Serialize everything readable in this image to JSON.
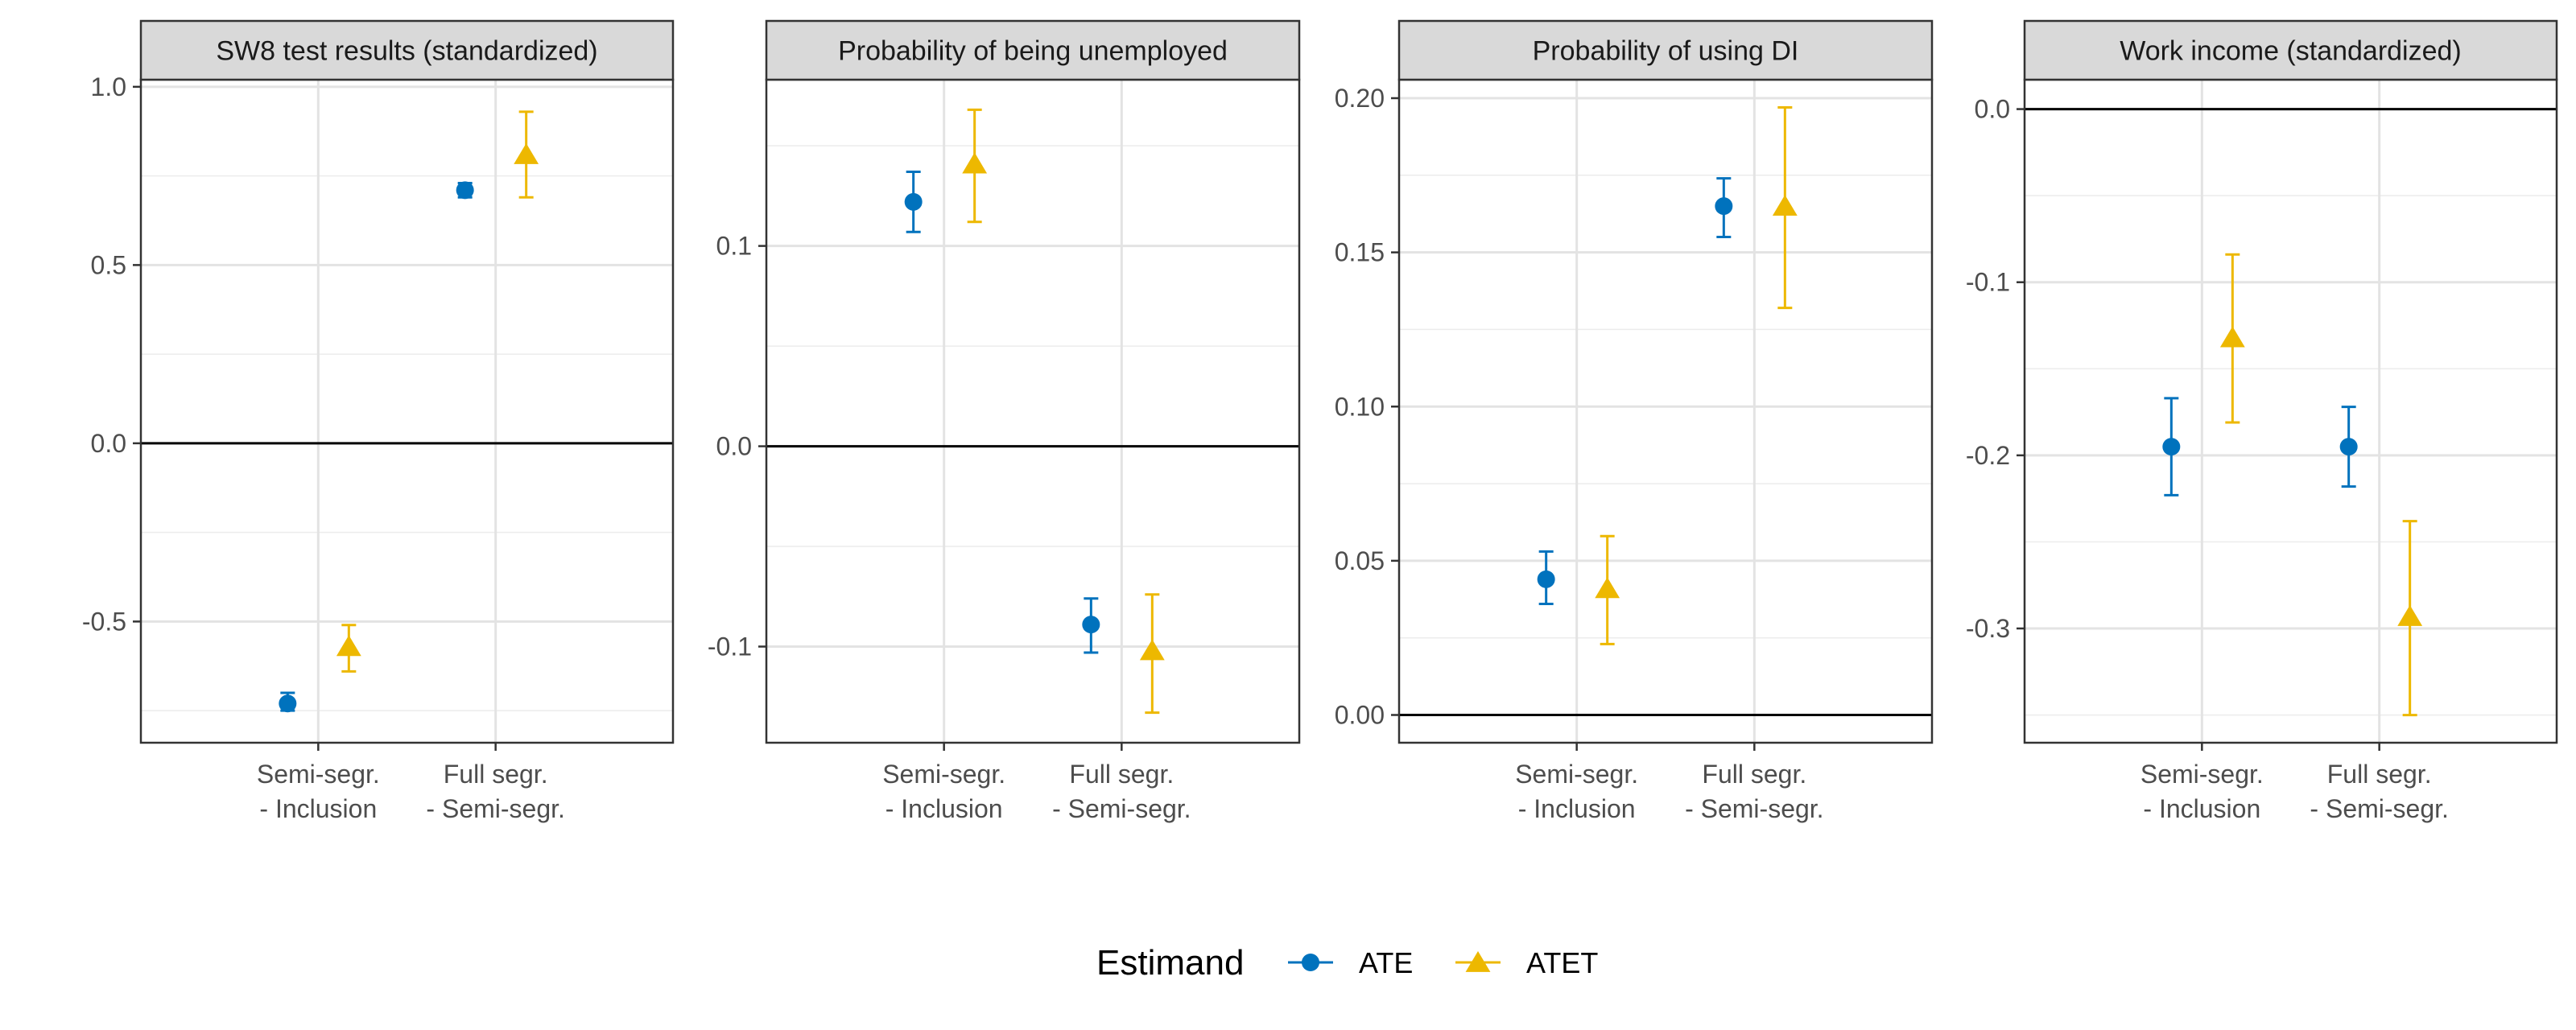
{
  "colors": {
    "ATE": "#0072BD",
    "ATET": "#EDB800"
  },
  "chart_data": [
    {
      "type": "scatter",
      "title": "SW8 test results (standardized)",
      "categories": [
        "Semi-segr.\n- Inclusion",
        "Full segr.\n- Semi-segr."
      ],
      "ylim": [
        -0.84,
        1.02
      ],
      "yticks": [
        -0.5,
        0.0,
        0.5,
        1.0
      ],
      "ytick_labels": [
        "-0.5",
        "0.0",
        "0.5",
        "1.0"
      ],
      "grid": true,
      "series": [
        {
          "name": "ATE",
          "marker": "circle",
          "values": [
            -0.73,
            0.71
          ],
          "lower": [
            -0.75,
            0.69
          ],
          "upper": [
            -0.7,
            0.73
          ]
        },
        {
          "name": "ATET",
          "marker": "triangle",
          "values": [
            -0.57,
            0.81
          ],
          "lower": [
            -0.64,
            0.69
          ],
          "upper": [
            -0.51,
            0.93
          ]
        }
      ]
    },
    {
      "type": "scatter",
      "title": "Probability of being unemployed",
      "categories": [
        "Semi-segr.\n- Inclusion",
        "Full segr.\n- Semi-segr."
      ],
      "ylim": [
        -0.148,
        0.183
      ],
      "yticks": [
        -0.1,
        0.0,
        0.1
      ],
      "ytick_labels": [
        "-0.1",
        "0.0",
        "0.1"
      ],
      "grid": true,
      "series": [
        {
          "name": "ATE",
          "marker": "circle",
          "values": [
            0.122,
            -0.089
          ],
          "lower": [
            0.107,
            -0.103
          ],
          "upper": [
            0.137,
            -0.076
          ]
        },
        {
          "name": "ATET",
          "marker": "triangle",
          "values": [
            0.141,
            -0.102
          ],
          "lower": [
            0.112,
            -0.133
          ],
          "upper": [
            0.168,
            -0.074
          ]
        }
      ]
    },
    {
      "type": "scatter",
      "title": "Probability of using DI",
      "categories": [
        "Semi-segr.\n- Inclusion",
        "Full segr.\n- Semi-segr."
      ],
      "ylim": [
        -0.009,
        0.206
      ],
      "yticks": [
        0.0,
        0.05,
        0.1,
        0.15,
        0.2
      ],
      "ytick_labels": [
        "0.00",
        "0.05",
        "0.10",
        "0.15",
        "0.20"
      ],
      "grid": true,
      "series": [
        {
          "name": "ATE",
          "marker": "circle",
          "values": [
            0.044,
            0.165
          ],
          "lower": [
            0.036,
            0.155
          ],
          "upper": [
            0.053,
            0.174
          ]
        },
        {
          "name": "ATET",
          "marker": "triangle",
          "values": [
            0.041,
            0.165
          ],
          "lower": [
            0.023,
            0.132
          ],
          "upper": [
            0.058,
            0.197
          ]
        }
      ]
    },
    {
      "type": "scatter",
      "title": "Work income (standardized)",
      "categories": [
        "Semi-segr.\n- Inclusion",
        "Full segr.\n- Semi-segr."
      ],
      "ylim": [
        -0.366,
        0.017
      ],
      "yticks": [
        -0.3,
        -0.2,
        -0.1,
        0.0
      ],
      "ytick_labels": [
        "-0.3",
        "-0.2",
        "-0.1",
        "0.0"
      ],
      "grid": true,
      "series": [
        {
          "name": "ATE",
          "marker": "circle",
          "values": [
            -0.195,
            -0.195
          ],
          "lower": [
            -0.223,
            -0.218
          ],
          "upper": [
            -0.167,
            -0.172
          ]
        },
        {
          "name": "ATET",
          "marker": "triangle",
          "values": [
            -0.132,
            -0.293
          ],
          "lower": [
            -0.181,
            -0.35
          ],
          "upper": [
            -0.084,
            -0.238
          ]
        }
      ]
    }
  ],
  "legend": {
    "title": "Estimand",
    "entries": [
      {
        "label": "ATE",
        "series": "ATE",
        "marker": "circle"
      },
      {
        "label": "ATET",
        "series": "ATET",
        "marker": "triangle"
      }
    ]
  }
}
